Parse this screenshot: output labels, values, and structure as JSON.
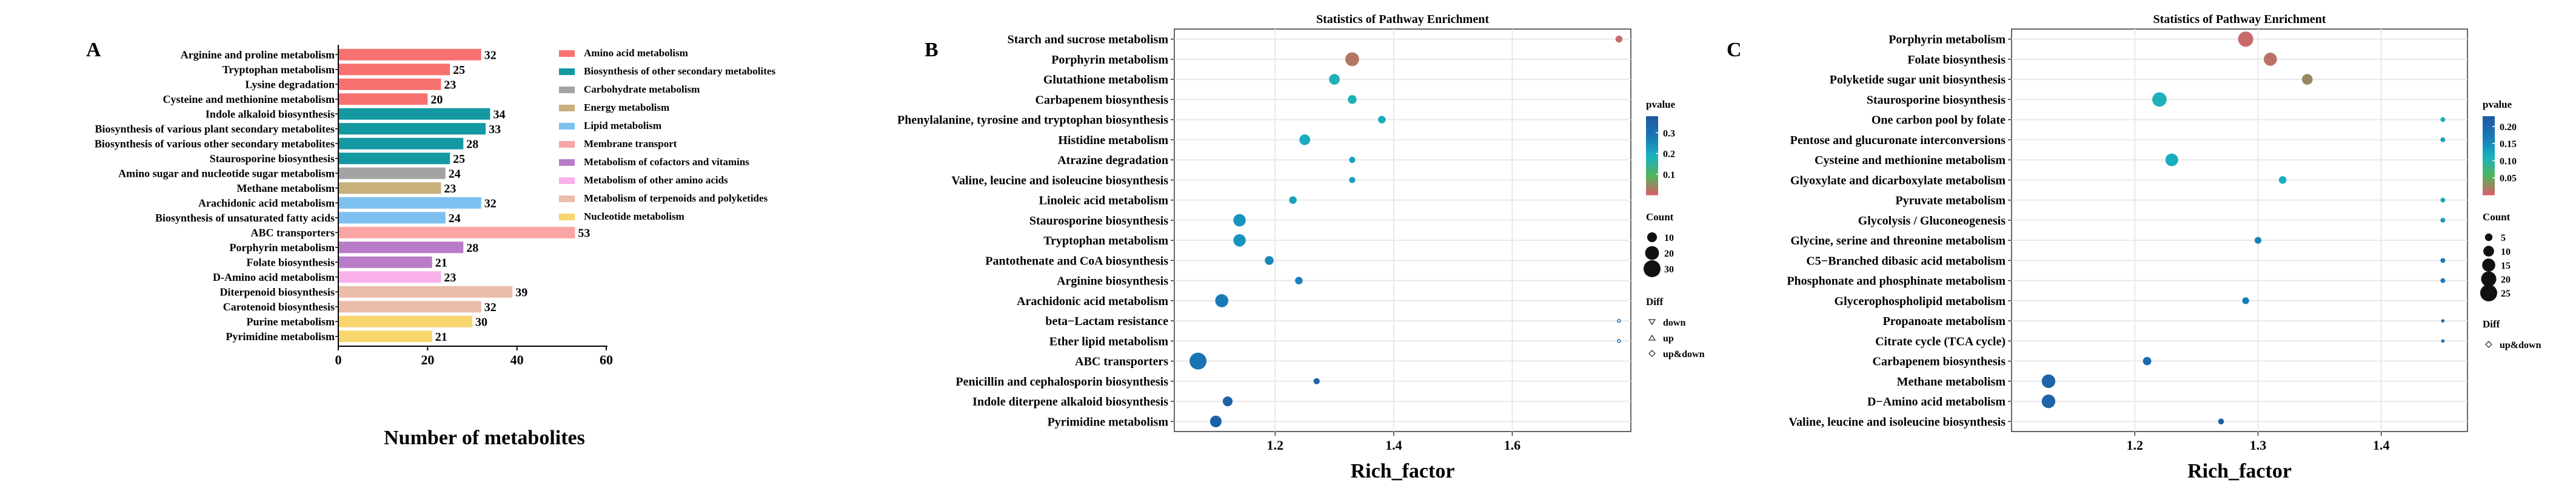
{
  "chart_data": [
    {
      "type": "bar",
      "panel_label": "A",
      "orientation": "horizontal",
      "xlabel": "Number of metabolites",
      "xlim": [
        0,
        60
      ],
      "xticks": [
        "0",
        "20",
        "40",
        "60"
      ],
      "categories": [
        "Arginine and proline metabolism",
        "Tryptophan metabolism",
        "Lysine degradation",
        "Cysteine and methionine metabolism",
        "Indole alkaloid biosynthesis",
        "Biosynthesis of various plant secondary metabolites",
        "Biosynthesis of various other secondary metabolites",
        "Staurosporine biosynthesis",
        "Amino sugar and nucleotide sugar metabolism",
        "Methane metabolism",
        "Arachidonic acid metabolism",
        "Biosynthesis of unsaturated fatty acids",
        "ABC transporters",
        "Porphyrin metabolism",
        "Folate biosynthesis",
        "D-Amino acid metabolism",
        "Diterpenoid biosynthesis",
        "Carotenoid biosynthesis",
        "Purine metabolism",
        "Pyrimidine metabolism"
      ],
      "values": [
        32,
        25,
        23,
        20,
        34,
        33,
        28,
        25,
        24,
        23,
        32,
        24,
        53,
        28,
        21,
        23,
        39,
        32,
        30,
        21
      ],
      "value_labels": [
        "32",
        "25",
        "23",
        "20",
        "34",
        "33",
        "28",
        "25",
        "24",
        "23",
        "32",
        "24",
        "53",
        "28",
        "21",
        "23",
        "39",
        "32",
        "30",
        "21"
      ],
      "groups": [
        0,
        0,
        0,
        0,
        1,
        1,
        1,
        1,
        2,
        3,
        4,
        4,
        5,
        6,
        6,
        7,
        8,
        8,
        9,
        9
      ],
      "legend": [
        {
          "label": "Amino acid metabolism",
          "color": "#f87171"
        },
        {
          "label": "Biosynthesis of other secondary metabolites",
          "color": "#1499a2"
        },
        {
          "label": "Carbohydrate metabolism",
          "color": "#a3a3a3"
        },
        {
          "label": "Energy metabolism",
          "color": "#c8b07c"
        },
        {
          "label": "Lipid metabolism",
          "color": "#7ec0f0"
        },
        {
          "label": "Membrane transport",
          "color": "#f9a5a5"
        },
        {
          "label": "Metabolism of cofactors and vitamins",
          "color": "#b97cc8"
        },
        {
          "label": "Metabolism of other amino acids",
          "color": "#f9b0ea"
        },
        {
          "label": "Metabolism of terpenoids and polyketides",
          "color": "#e9bda9"
        },
        {
          "label": "Nucleotide metabolism",
          "color": "#f9d56e"
        }
      ]
    },
    {
      "type": "scatter",
      "panel_label": "B",
      "title": "Statistics of Pathway Enrichment",
      "xlabel": "Rich_factor",
      "xlim": [
        1.03,
        1.8
      ],
      "xticks": [
        1.2,
        1.4,
        1.6
      ],
      "xtick_labels": [
        "1.2",
        "1.4",
        "1.6"
      ],
      "categories": [
        "Starch and sucrose metabolism",
        "Porphyrin metabolism",
        "Glutathione metabolism",
        "Carbapenem biosynthesis",
        "Phenylalanine, tyrosine and tryptophan biosynthesis",
        "Histidine metabolism",
        "Atrazine degradation",
        "Valine, leucine and isoleucine biosynthesis",
        "Linoleic acid metabolism",
        "Staurosporine biosynthesis",
        "Tryptophan metabolism",
        "Pantothenate and CoA biosynthesis",
        "Arginine biosynthesis",
        "Arachidonic acid metabolism",
        "beta−Lactam resistance",
        "Ether lipid metabolism",
        "ABC transporters",
        "Penicillin and cephalosporin biosynthesis",
        "Indole diterpene alkaloid biosynthesis",
        "Pyrimidine metabolism"
      ],
      "x": [
        1.78,
        1.33,
        1.3,
        1.33,
        1.38,
        1.25,
        1.33,
        1.33,
        1.23,
        1.14,
        1.14,
        1.19,
        1.24,
        1.11,
        1.78,
        1.78,
        1.07,
        1.27,
        1.12,
        1.1
      ],
      "count": [
        5,
        20,
        12,
        8,
        6,
        12,
        4,
        4,
        6,
        16,
        16,
        8,
        6,
        18,
        1,
        1,
        30,
        4,
        10,
        14
      ],
      "pvalue": [
        0.02,
        0.03,
        0.18,
        0.18,
        0.2,
        0.2,
        0.22,
        0.22,
        0.22,
        0.24,
        0.24,
        0.26,
        0.27,
        0.28,
        0.3,
        0.3,
        0.3,
        0.34,
        0.35,
        0.36
      ],
      "pvalue_legend": {
        "title": "pvalue",
        "ticks": [
          0.1,
          0.2,
          0.3
        ],
        "tick_labels": [
          "0.1",
          "0.2",
          "0.3"
        ],
        "range": [
          0.0,
          0.38
        ]
      },
      "count_legend": {
        "title": "Count",
        "values": [
          10,
          20,
          30
        ],
        "labels": [
          "10",
          "20",
          "30"
        ]
      },
      "diff_legend": {
        "title": "Diff",
        "items": [
          "down",
          "up",
          "up&down"
        ]
      }
    },
    {
      "type": "scatter",
      "panel_label": "C",
      "title": "Statistics of Pathway Enrichment",
      "xlabel": "Rich_factor",
      "xlim": [
        1.1,
        1.47
      ],
      "xticks": [
        1.2,
        1.3,
        1.4
      ],
      "xtick_labels": [
        "1.2",
        "1.3",
        "1.4"
      ],
      "categories": [
        "Porphyrin metabolism",
        "Folate biosynthesis",
        "Polyketide sugar unit biosynthesis",
        "Staurosporine biosynthesis",
        "One carbon pool by folate",
        "Pentose and glucuronate interconversions",
        "Cysteine and methionine metabolism",
        "Glyoxylate and dicarboxylate metabolism",
        "Pyruvate metabolism",
        "Glycolysis / Gluconeogenesis",
        "Glycine, serine and threonine metabolism",
        "C5−Branched dibasic acid metabolism",
        "Phosphonate and phosphinate metabolism",
        "Glycerophospholipid metabolism",
        "Propanoate metabolism",
        "Citrate cycle (TCA cycle)",
        "Carbapenem biosynthesis",
        "Methane metabolism",
        "D−Amino acid metabolism",
        "Valine, leucine and isoleucine biosynthesis"
      ],
      "x": [
        1.29,
        1.31,
        1.34,
        1.22,
        1.45,
        1.45,
        1.23,
        1.32,
        1.45,
        1.45,
        1.3,
        1.45,
        1.45,
        1.29,
        1.45,
        1.45,
        1.21,
        1.13,
        1.13,
        1.27
      ],
      "count": [
        20,
        15,
        10,
        18,
        2,
        2,
        14,
        5,
        2,
        2,
        4,
        2,
        2,
        4,
        1,
        1,
        6,
        16,
        16,
        3
      ],
      "pvalue": [
        0.01,
        0.015,
        0.03,
        0.11,
        0.12,
        0.13,
        0.12,
        0.12,
        0.13,
        0.14,
        0.16,
        0.17,
        0.17,
        0.17,
        0.19,
        0.19,
        0.2,
        0.21,
        0.21,
        0.22
      ],
      "pvalue_legend": {
        "title": "pvalue",
        "ticks": [
          0.05,
          0.1,
          0.15,
          0.2
        ],
        "tick_labels": [
          "0.05",
          "0.10",
          "0.15",
          "0.20"
        ],
        "range": [
          0.0,
          0.23
        ]
      },
      "count_legend": {
        "title": "Count",
        "values": [
          5,
          10,
          15,
          20,
          25
        ],
        "labels": [
          "5",
          "10",
          "15",
          "20",
          "25"
        ]
      },
      "diff_legend": {
        "title": "Diff",
        "items": [
          "up&down"
        ]
      }
    }
  ]
}
